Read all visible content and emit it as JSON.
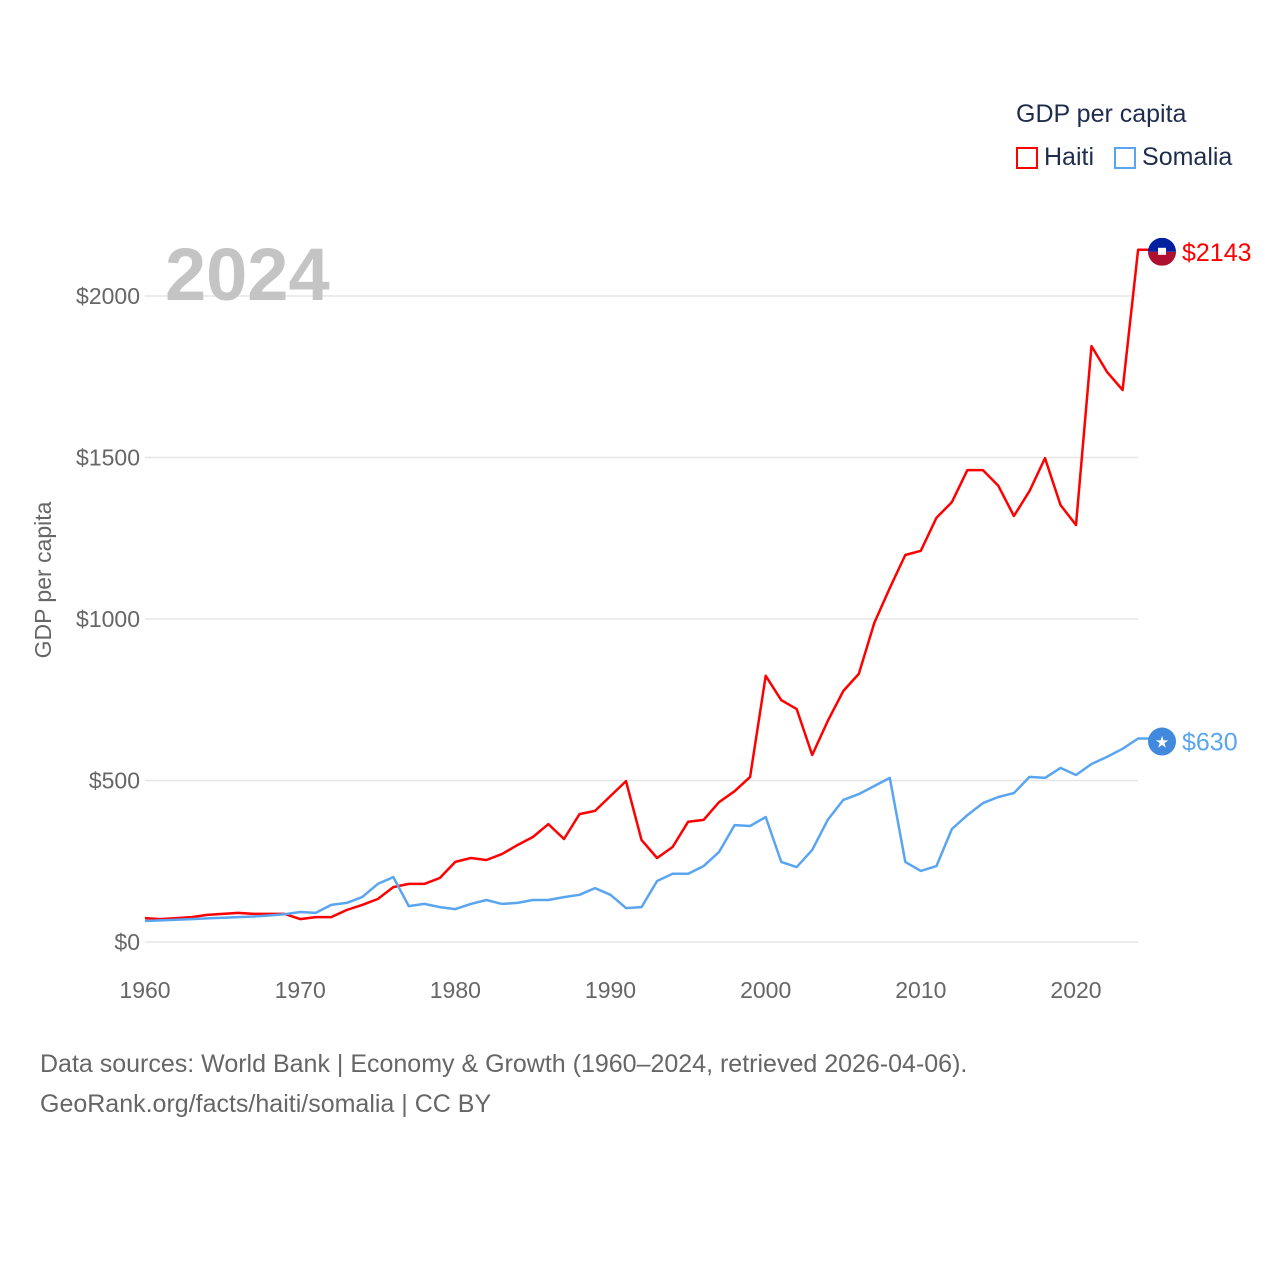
{
  "chart_data": {
    "type": "line",
    "title": "GDP per capita",
    "year_label": "2024",
    "xlabel": "",
    "ylabel": "GDP per capita",
    "xlim": [
      1960,
      2024
    ],
    "ylim": [
      0,
      2200
    ],
    "x_ticks": [
      1960,
      1970,
      1980,
      1990,
      2000,
      2010,
      2020
    ],
    "x_tick_labels": [
      "1960",
      "1970",
      "1980",
      "1990",
      "2000",
      "2010",
      "2020"
    ],
    "y_ticks": [
      0,
      500,
      1000,
      1500,
      2000
    ],
    "y_tick_labels": [
      "$0",
      "$500",
      "$1000",
      "$1500",
      "$2000"
    ],
    "grid": true,
    "legend_placement": "top-right",
    "x": [
      1960,
      1961,
      1962,
      1963,
      1964,
      1965,
      1966,
      1967,
      1968,
      1969,
      1970,
      1971,
      1972,
      1973,
      1974,
      1975,
      1976,
      1977,
      1978,
      1979,
      1980,
      1981,
      1982,
      1983,
      1984,
      1985,
      1986,
      1987,
      1988,
      1989,
      1990,
      1991,
      1992,
      1993,
      1994,
      1995,
      1996,
      1997,
      1998,
      1999,
      2000,
      2001,
      2002,
      2003,
      2004,
      2005,
      2006,
      2007,
      2008,
      2009,
      2010,
      2011,
      2012,
      2013,
      2014,
      2015,
      2016,
      2017,
      2018,
      2019,
      2020,
      2021,
      2022,
      2023,
      2024
    ],
    "series": [
      {
        "name": "Haiti",
        "color": "#ff0000",
        "end_label": "$2143",
        "values": [
          74,
          71,
          74,
          77,
          84,
          87,
          90,
          87,
          87,
          87,
          71,
          77,
          77,
          99,
          115,
          133,
          170,
          180,
          180,
          198,
          248,
          260,
          254,
          272,
          300,
          325,
          365,
          319,
          396,
          406,
          452,
          498,
          316,
          260,
          294,
          372,
          378,
          433,
          467,
          511,
          824,
          749,
          721,
          579,
          684,
          777,
          830,
          988,
          1096,
          1198,
          1211,
          1313,
          1362,
          1461,
          1461,
          1412,
          1319,
          1396,
          1498,
          1353,
          1291,
          1845,
          1765,
          1709,
          2143
        ]
      },
      {
        "name": "Somalia",
        "color": "#5aa5ef",
        "end_label": "$630",
        "values": [
          65,
          67,
          69,
          71,
          73,
          75,
          77,
          79,
          82,
          86,
          93,
          90,
          115,
          121,
          139,
          180,
          201,
          111,
          118,
          108,
          102,
          118,
          130,
          118,
          121,
          130,
          130,
          139,
          146,
          167,
          146,
          105,
          108,
          189,
          211,
          211,
          235,
          279,
          362,
          359,
          387,
          248,
          232,
          285,
          378,
          440,
          458,
          483,
          508,
          248,
          220,
          235,
          350,
          393,
          430,
          449,
          461,
          511,
          508,
          539,
          517,
          551,
          573,
          598,
          630
        ]
      }
    ]
  },
  "footer": {
    "line1": "Data sources: World Bank | Economy & Growth (1960–2024, retrieved 2026-04-06).",
    "line2": "GeoRank.org/facts/haiti/somalia | CC BY"
  }
}
